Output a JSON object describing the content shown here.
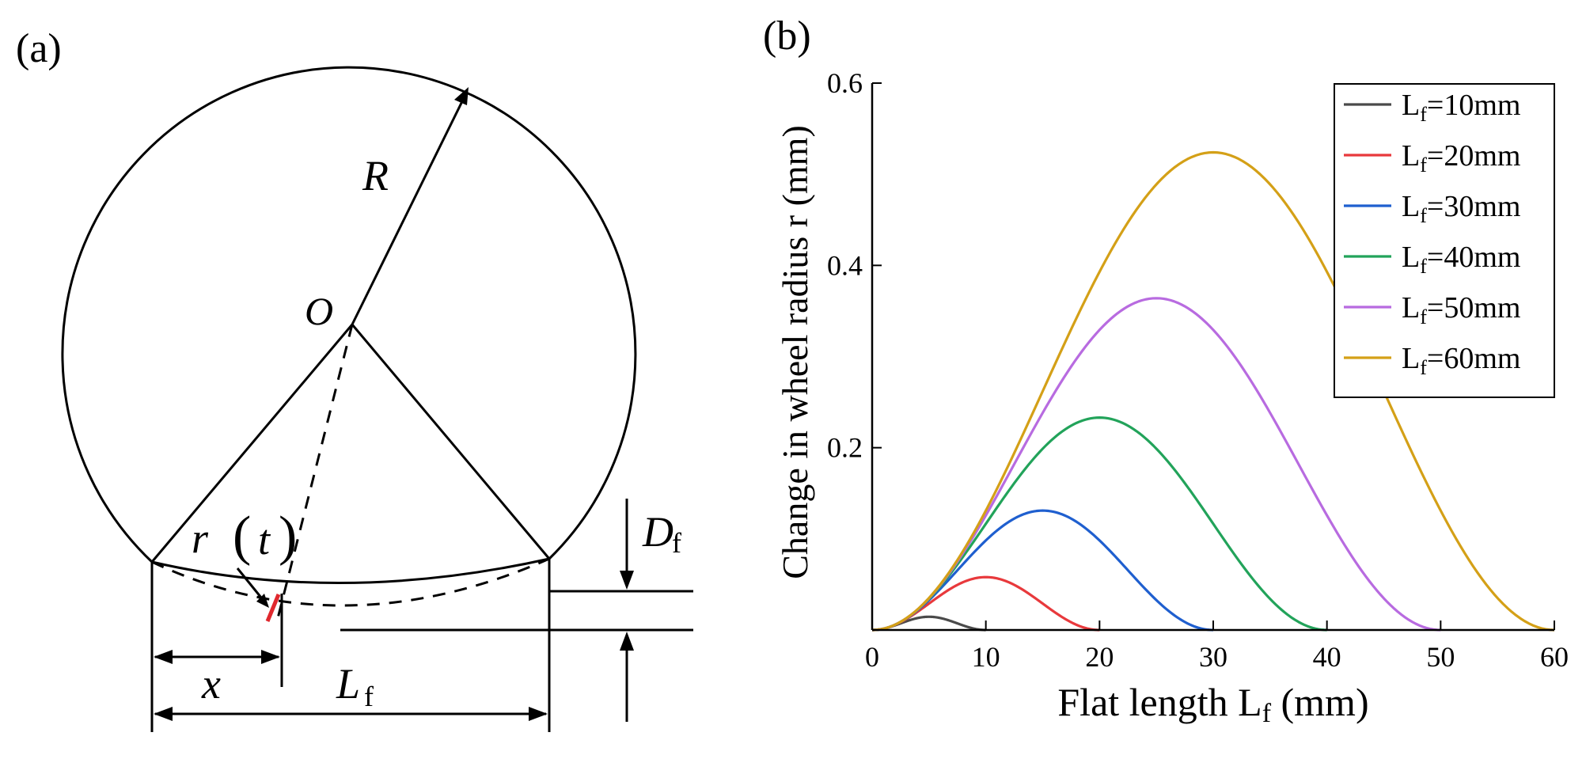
{
  "panel_a": {
    "label": "(a)",
    "labels": {
      "R": "R",
      "O": "O",
      "r": "r",
      "t": "t",
      "x": "x",
      "Lf_main": "L",
      "Lf_sub": "f",
      "Df_main": "D",
      "Df_sub": "f"
    },
    "colors": {
      "line": "#000000",
      "highlight": "#e0282e"
    }
  },
  "panel_b": {
    "label": "(b)"
  },
  "chart_data": {
    "type": "line",
    "title": "",
    "xlabel": {
      "main": "Flat length L",
      "sub": "f",
      "unit": " (mm)"
    },
    "ylabel": "Change in wheel radius r (mm)",
    "xlim": [
      0,
      60
    ],
    "ylim": [
      0,
      0.6
    ],
    "xticks": [
      0,
      10,
      20,
      30,
      40,
      50,
      60
    ],
    "xtick_labels": [
      "0",
      "10",
      "20",
      "30",
      "40",
      "50",
      "60"
    ],
    "yticks": [
      0.2,
      0.4,
      0.6
    ],
    "ytick_labels": [
      "0.2",
      "0.4",
      "0.6"
    ],
    "grid": false,
    "legend_position": "top-right",
    "series": [
      {
        "name": "L_f=10mm",
        "label_main": "L",
        "label_sub": "f",
        "label_rest": "=10mm",
        "color": "#4a4a4a",
        "length": 10,
        "depth": 0.0145
      },
      {
        "name": "L_f=20mm",
        "label_main": "L",
        "label_sub": "f",
        "label_rest": "=20mm",
        "color": "#e8393c",
        "length": 20,
        "depth": 0.058
      },
      {
        "name": "L_f=30mm",
        "label_main": "L",
        "label_sub": "f",
        "label_rest": "=30mm",
        "color": "#1f5fcf",
        "length": 30,
        "depth": 0.131
      },
      {
        "name": "L_f=40mm",
        "label_main": "L",
        "label_sub": "f",
        "label_rest": "=40mm",
        "color": "#22a35a",
        "length": 40,
        "depth": 0.233
      },
      {
        "name": "L_f=50mm",
        "label_main": "L",
        "label_sub": "f",
        "label_rest": "=50mm",
        "color": "#b86be0",
        "length": 50,
        "depth": 0.364
      },
      {
        "name": "L_f=60mm",
        "label_main": "L",
        "label_sub": "f",
        "label_rest": "=60mm",
        "color": "#d4a017",
        "length": 60,
        "depth": 0.524
      }
    ]
  }
}
